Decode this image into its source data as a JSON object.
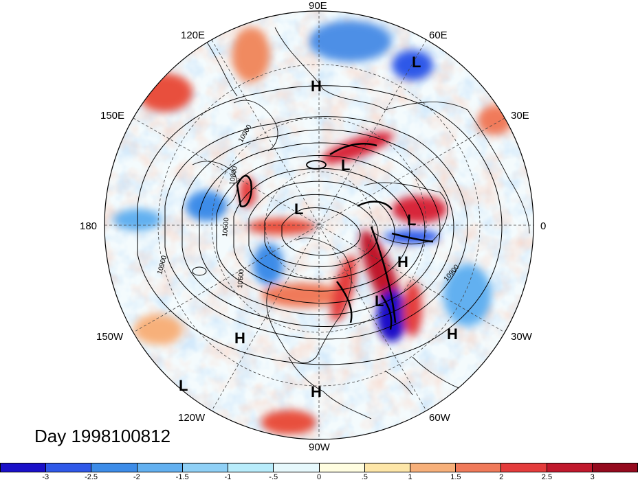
{
  "map": {
    "projection": "north-polar-stereographic",
    "lon_labels": {
      "l90e": "90E",
      "l60e": "60E",
      "l30e": "30E",
      "l0": "0",
      "l30w": "30W",
      "l60w": "60W",
      "l90w": "90W",
      "l120w": "120W",
      "l150w": "150W",
      "l180": "180",
      "l150e": "150E",
      "l120e": "120E"
    },
    "pressure_centers": [
      {
        "label": "H"
      },
      {
        "label": "L"
      },
      {
        "label": "L"
      },
      {
        "label": "L"
      },
      {
        "label": "L"
      },
      {
        "label": "H"
      },
      {
        "label": "L"
      },
      {
        "label": "H"
      },
      {
        "label": "H"
      },
      {
        "label": "H"
      },
      {
        "label": "L"
      }
    ],
    "contour_labels": [
      "10900",
      "10800",
      "10600",
      "10600",
      "10900",
      "10900"
    ]
  },
  "day_label": "Day 1998100812",
  "colorbar": {
    "ticks": [
      "-3",
      "-2.5",
      "-2",
      "-1.5",
      "-1",
      "-.5",
      "0",
      ".5",
      "1",
      "1.5",
      "2",
      "2.5",
      "3"
    ],
    "colors": [
      "#1a10c8",
      "#2f58e8",
      "#3d8ce8",
      "#62b0f0",
      "#8fd0f6",
      "#b8ecfb",
      "#e6f8fc",
      "#fffde0",
      "#fde6a8",
      "#f7b07a",
      "#f07a5a",
      "#e43c3c",
      "#c0182c",
      "#940a1e"
    ]
  }
}
